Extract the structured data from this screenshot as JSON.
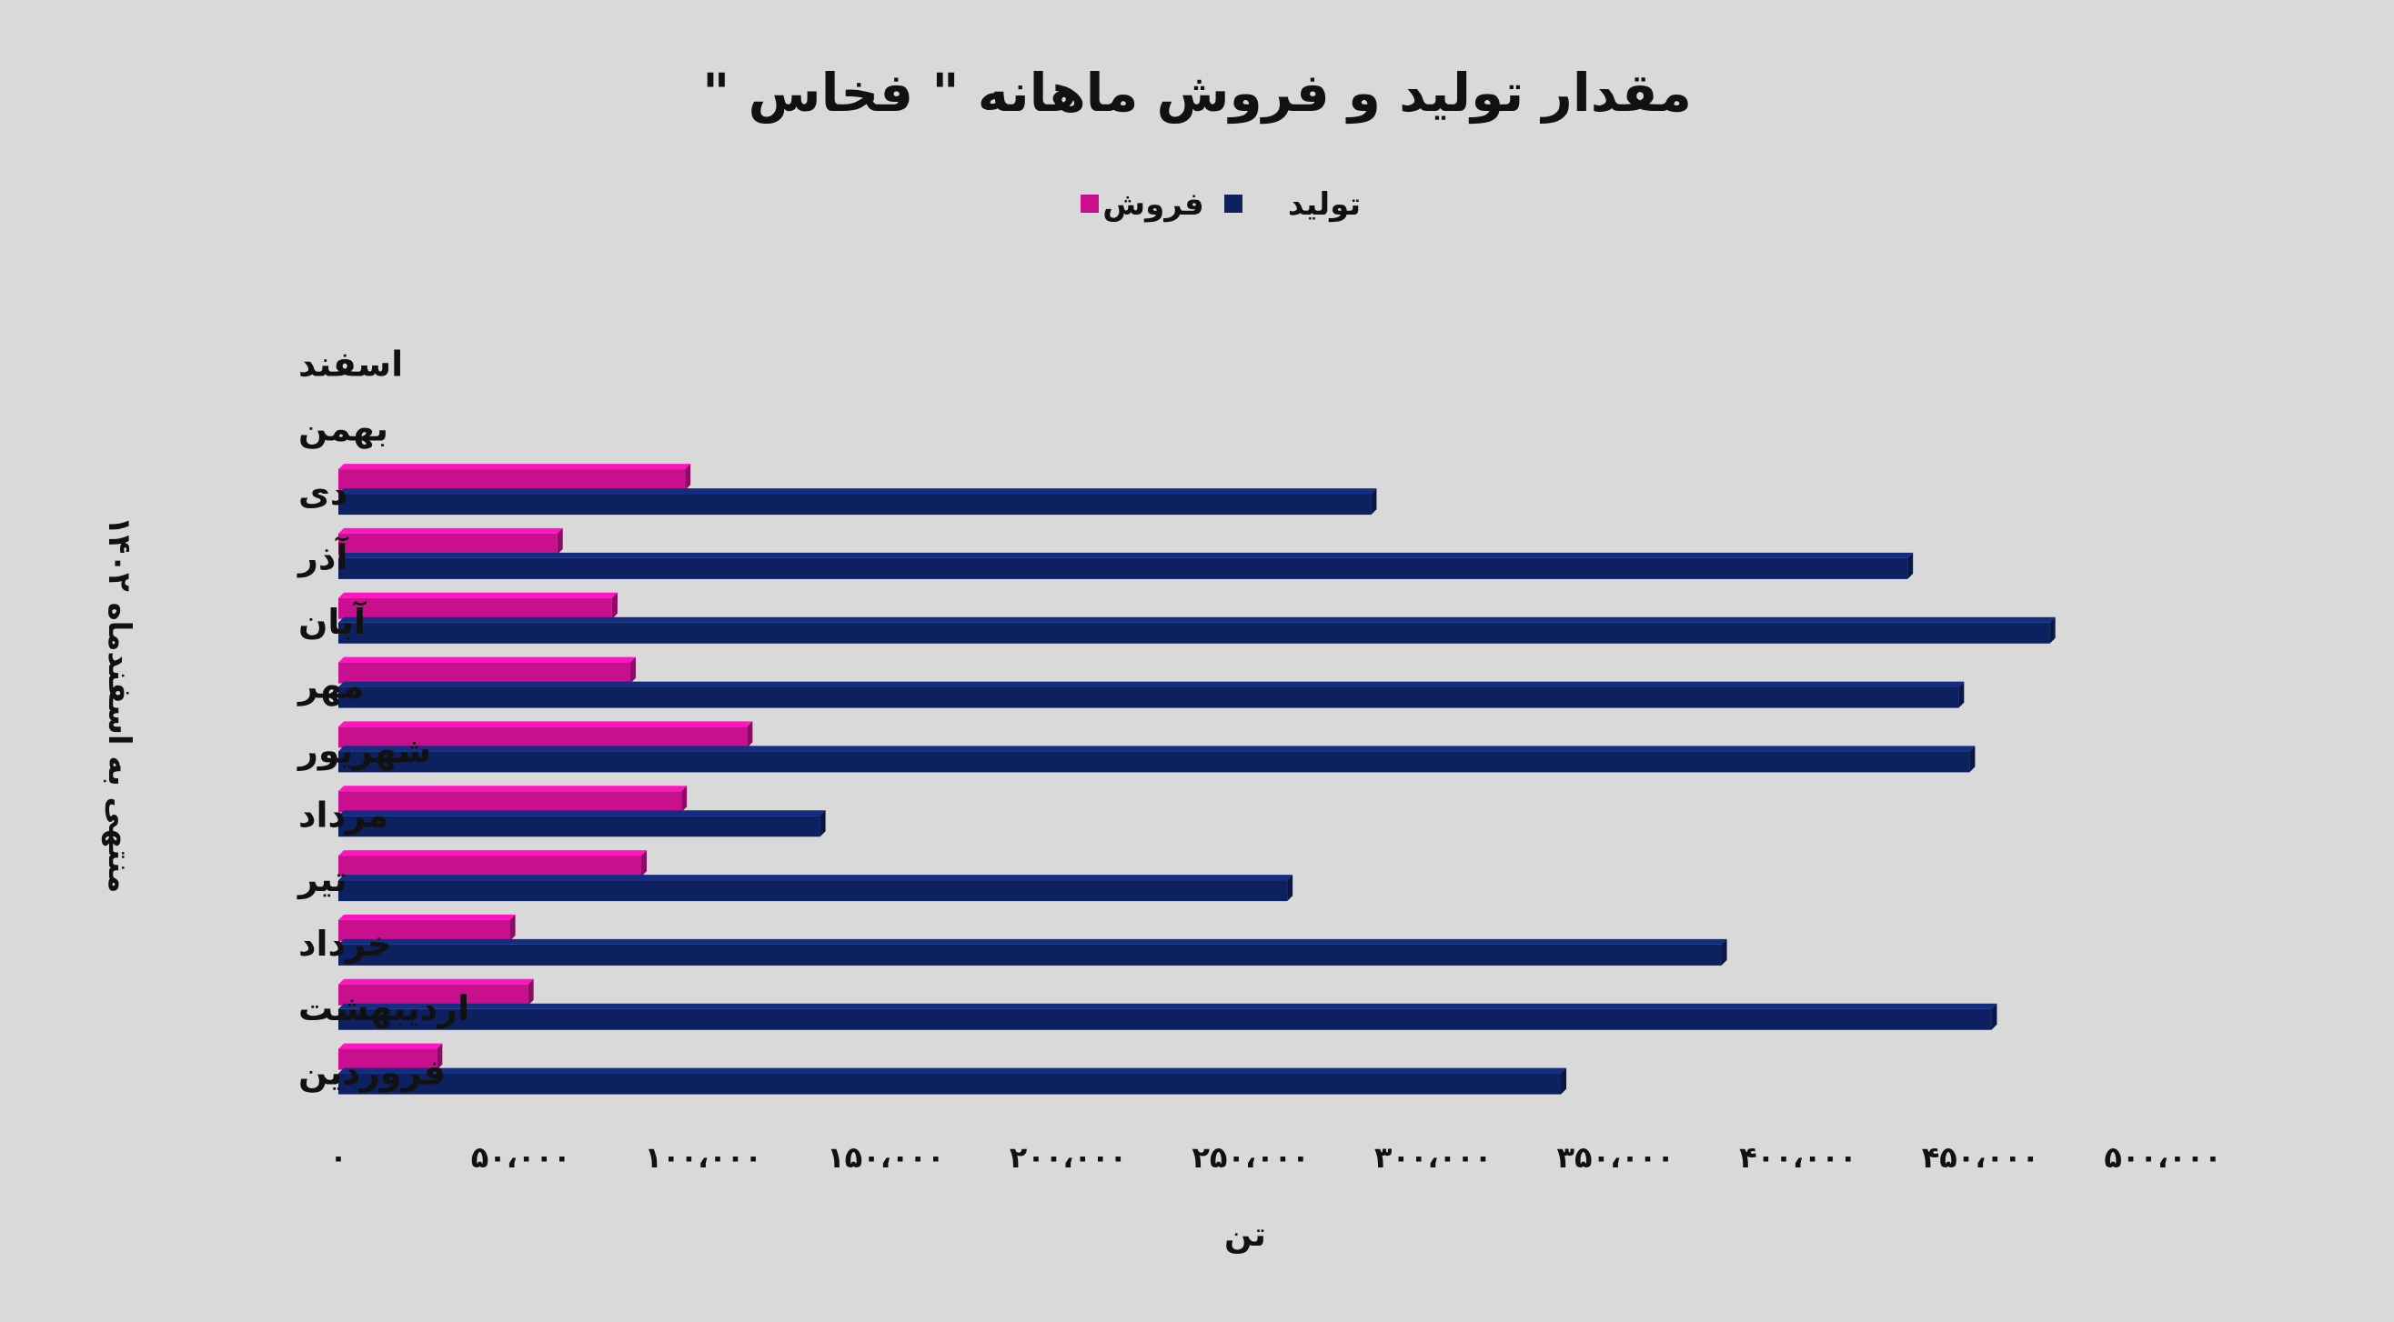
{
  "chart_data": {
    "type": "bar",
    "orientation": "horizontal",
    "title": "مقدار تولید و فروش ماهانه \" فخاس \"",
    "xlabel": "تن",
    "ylabel": "منتهی به اسفندماه ۱۴۰۲",
    "xlim": [
      0,
      500000
    ],
    "xticks": [
      0,
      50000,
      100000,
      150000,
      200000,
      250000,
      300000,
      350000,
      400000,
      450000,
      500000
    ],
    "xtick_labels": [
      "۰",
      "۵۰،۰۰۰",
      "۱۰۰،۰۰۰",
      "۱۵۰،۰۰۰",
      "۲۰۰،۰۰۰",
      "۲۵۰،۰۰۰",
      "۳۰۰،۰۰۰",
      "۳۵۰،۰۰۰",
      "۴۰۰،۰۰۰",
      "۴۵۰،۰۰۰",
      "۵۰۰،۰۰۰"
    ],
    "grid": false,
    "legend_position": "top-center",
    "categories": [
      "اسفند",
      "بهمن",
      "دی",
      "آذر",
      "آبان",
      "مهر",
      "شهریور",
      "مرداد",
      "تیر",
      "خرداد",
      "اردیبهشت",
      "فروردین"
    ],
    "series": [
      {
        "name": "فروش",
        "color": "#c8108f",
        "values": [
          null,
          null,
          95000,
          60000,
          75000,
          80000,
          112000,
          94000,
          83000,
          47000,
          52000,
          27000
        ]
      },
      {
        "name": "تولید",
        "color": "#0d2160",
        "values": [
          null,
          null,
          283000,
          430000,
          469000,
          444000,
          447000,
          132000,
          260000,
          379000,
          453000,
          335000
        ]
      }
    ]
  }
}
